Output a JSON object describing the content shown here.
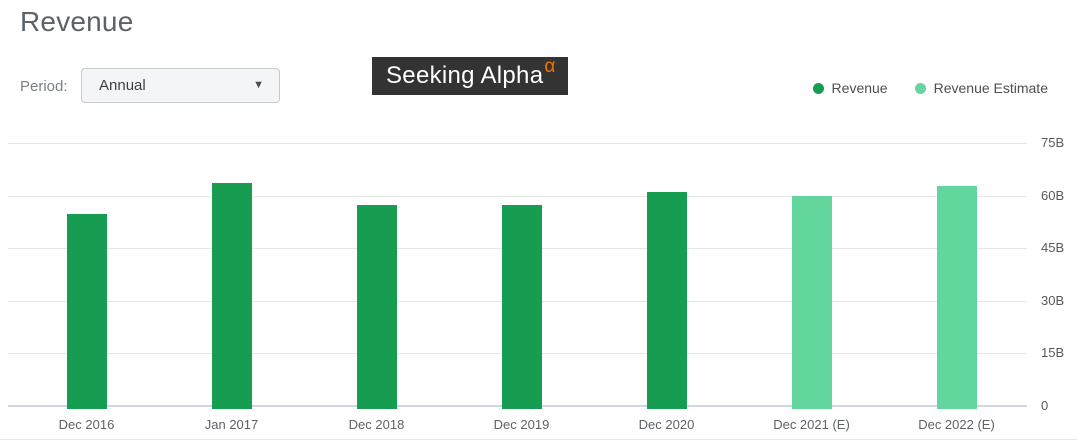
{
  "header": {
    "title": "Revenue"
  },
  "controls": {
    "period_label": "Period:",
    "period_value": "Annual",
    "dropdown_caret": "▼"
  },
  "logo": {
    "text": "Seeking Alpha",
    "alpha": "α",
    "background_color": "#333333",
    "alpha_color": "#ee7400"
  },
  "legend": {
    "items": [
      {
        "label": "Revenue",
        "color": "#169d52"
      },
      {
        "label": "Revenue Estimate",
        "color": "#63d69e"
      }
    ]
  },
  "chart_data": {
    "type": "bar",
    "title": "Revenue",
    "unit": "billions USD",
    "categories": [
      "Dec 2016",
      "Jan 2017",
      "Dec 2018",
      "Dec 2019",
      "Dec 2020",
      "Dec 2021 (E)",
      "Dec 2022 (E)"
    ],
    "series": [
      {
        "name": "Revenue",
        "color": "#169d52",
        "values": [
          54.7,
          63.7,
          57.4,
          57.2,
          61.1,
          null,
          null
        ]
      },
      {
        "name": "Revenue Estimate",
        "color": "#63d69e",
        "values": [
          null,
          null,
          null,
          null,
          null,
          60.0,
          62.8
        ]
      }
    ],
    "ylim": [
      0,
      75
    ],
    "yticks": [
      "0",
      "15B",
      "30B",
      "45B",
      "60B",
      "75B"
    ],
    "y_axis_side": "right",
    "grid": true,
    "legend_position": "top-right",
    "gridline_color": "#e6e6e6",
    "baseline_color": "#cfd6e0"
  }
}
